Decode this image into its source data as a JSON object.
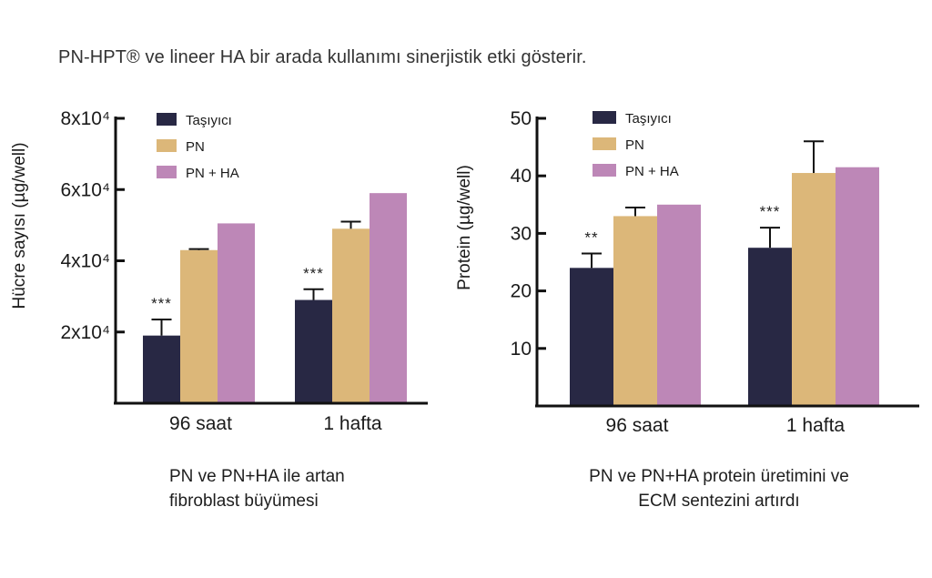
{
  "headline": "PN-HPT® ve lineer HA bir arada kullanımı sinerjistik etki gösterir.",
  "colors": {
    "tasiyici": "#282844",
    "pn": "#dcb779",
    "pn_ha": "#bd87b7",
    "axis": "#111111"
  },
  "chart_data": [
    {
      "type": "bar",
      "title": "",
      "ylabel": "Hücre sayısı (µg/well)",
      "xlabel": "",
      "categories": [
        "96 saat",
        "1 hafta"
      ],
      "ylim": [
        0,
        80000
      ],
      "yticks": [
        20000,
        40000,
        60000,
        80000
      ],
      "ytick_labels": [
        "2x10⁴",
        "4x10⁴",
        "6x10⁴",
        "8x10⁴"
      ],
      "legend": "top-left",
      "series": [
        {
          "name": "Taşıyıcı",
          "values": [
            19000,
            29000
          ],
          "errors": [
            4500,
            3000
          ]
        },
        {
          "name": "PN",
          "values": [
            43000,
            49000
          ],
          "errors": [
            300,
            2000
          ]
        },
        {
          "name": "PN + HA",
          "values": [
            50500,
            59000
          ]
        }
      ],
      "annotations": [
        {
          "category": "96 saat",
          "series": "Taşıyıcı",
          "text": "***"
        },
        {
          "category": "1 hafta",
          "series": "Taşıyıcı",
          "text": "***"
        }
      ],
      "caption": [
        "PN ve  PN+HA ile artan",
        "fibroblast büyümesi"
      ]
    },
    {
      "type": "bar",
      "title": "",
      "ylabel": "Protein (µg/well)",
      "xlabel": "",
      "categories": [
        "96 saat",
        "1 hafta"
      ],
      "ylim": [
        0,
        50
      ],
      "yticks": [
        10,
        20,
        30,
        40,
        50
      ],
      "ytick_labels": [
        "10",
        "20",
        "30",
        "40",
        "50"
      ],
      "legend": "top-left",
      "series": [
        {
          "name": "Taşıyıcı",
          "values": [
            24,
            27.5
          ],
          "errors": [
            2.5,
            3.5
          ]
        },
        {
          "name": "PN",
          "values": [
            33,
            40.5
          ],
          "errors": [
            1.5,
            5.5
          ]
        },
        {
          "name": "PN + HA",
          "values": [
            35,
            41.5
          ]
        }
      ],
      "annotations": [
        {
          "category": "96 saat",
          "series": "Taşıyıcı",
          "text": "**"
        },
        {
          "category": "1 hafta",
          "series": "Taşıyıcı",
          "text": "***"
        }
      ],
      "caption": [
        "PN ve PN+HA protein üretimini ve",
        "ECM sentezini artırdı"
      ]
    }
  ]
}
